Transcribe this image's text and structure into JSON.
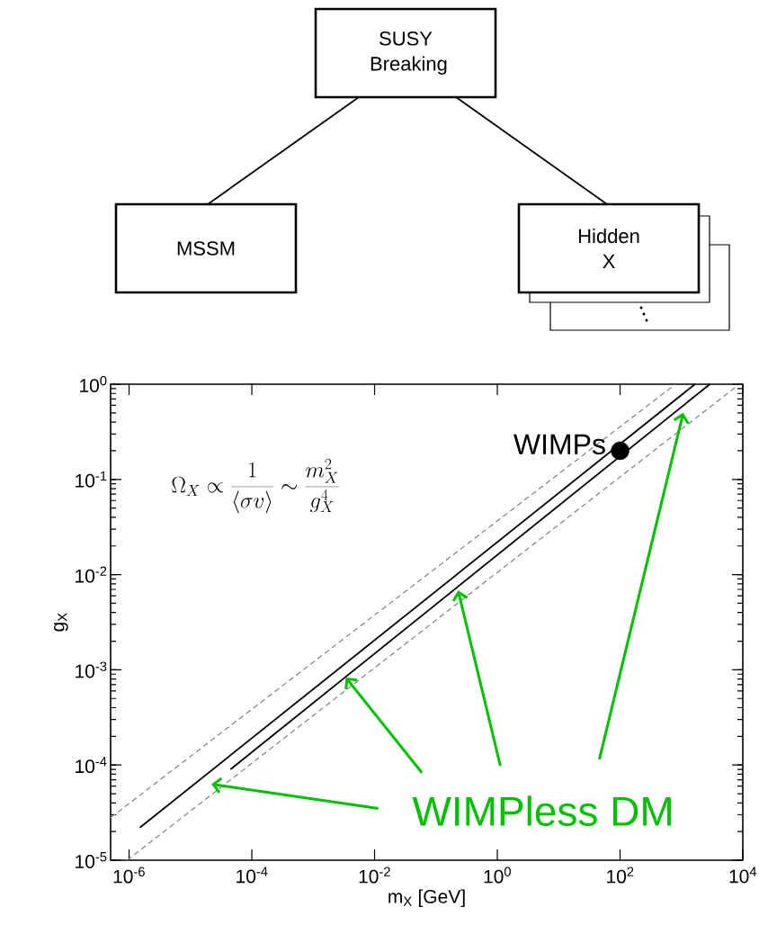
{
  "chart_data": [
    {
      "type": "other",
      "annotations": [
        "SUSY Breaking",
        "MSSM",
        "Hidden X"
      ]
    },
    {
      "type": "line",
      "xlabel": "m$_{X}$ [GeV]",
      "ylabel": "g$_{X}$",
      "log": "xy",
      "grid": false,
      "xlim": [
        5e-07,
        10000
      ],
      "ylim": [
        1e-05,
        1
      ],
      "xticks": [
        {
          "value": 1e-06,
          "label": "10$^{-6}$"
        },
        {
          "value": 0.0001,
          "label": "10$^{-4}$"
        },
        {
          "value": 0.01,
          "label": "10$^{-2}$"
        },
        {
          "value": 1,
          "label": "10$^{0}$"
        },
        {
          "value": 100,
          "label": "10$^{2}$"
        },
        {
          "value": 10000,
          "label": "10$^{4}$"
        }
      ],
      "yticks": [
        {
          "value": 1e-05,
          "label": "10$^{-5}$"
        },
        {
          "value": 0.0001,
          "label": "10$^{-4}$"
        },
        {
          "value": 0.001,
          "label": "10$^{-3}$"
        },
        {
          "value": 0.01,
          "label": "10$^{-2}$"
        },
        {
          "value": 0.1,
          "label": "10$^{-1}$"
        },
        {
          "value": 1,
          "label": "10$^{0}$"
        }
      ],
      "annotations": [
        "\\Omega_X \\propto \\frac{1}{\\langle \\sigma v\\rangle} \\sim \\frac{m_X^2}{g_X^4}",
        {
          "text": "WIMPless DM",
          "x": 0.0034,
          "y": 0.00083
        }
      ],
      "series": [
        {
          "x": [
            1.5e-06,
            1660
          ],
          "values": [
            2.2e-05,
            1
          ],
          "color": "#000000",
          "line_style": "solid"
        },
        {
          "x": [
            4.5e-05,
            2900
          ],
          "values": [
            9e-05,
            1
          ],
          "color": "#000000",
          "line_style": "solid"
        },
        {
          "x": [
            5e-07,
            800
          ],
          "values": [
            2.8e-05,
            1
          ],
          "color": "#808080",
          "line_style": "dashed"
        },
        {
          "x": [
            9.3e-07,
            7600
          ],
          "values": [
            1e-05,
            0.93
          ],
          "color": "#808080",
          "line_style": "dashed"
        },
        {
          "type": "scatter",
          "name": "WIMPs",
          "x": [
            100
          ],
          "values": [
            0.2
          ],
          "color": "#000000",
          "marker": "circle"
        }
      ]
    }
  ]
}
